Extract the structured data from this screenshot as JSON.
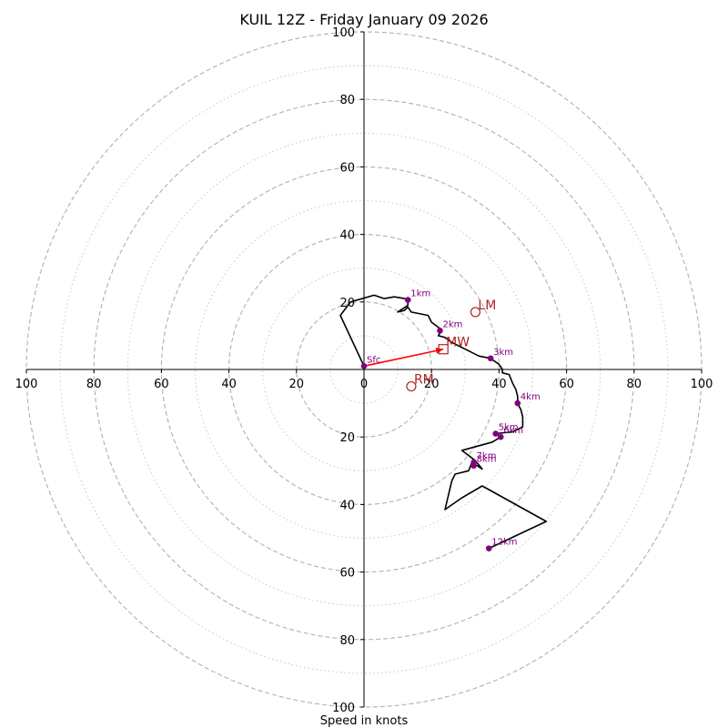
{
  "chart_data": {
    "type": "hodograph",
    "title": "KUIL 12Z - Friday January 09 2026",
    "xlabel": "Speed in knots",
    "units": "knots",
    "range": [
      -100,
      100
    ],
    "major_rings": [
      20,
      40,
      60,
      80,
      100
    ],
    "minor_rings": [
      10,
      30,
      50,
      70,
      90
    ],
    "x_tick_labels": [
      "100",
      "80",
      "60",
      "40",
      "20",
      "0",
      "20",
      "40",
      "60",
      "80",
      "100"
    ],
    "x_tick_values": [
      -100,
      -80,
      -60,
      -40,
      -20,
      0,
      20,
      40,
      60,
      80,
      100
    ],
    "y_tick_labels": [
      "100",
      "80",
      "60",
      "40",
      "20",
      "20",
      "40",
      "60",
      "80",
      "100"
    ],
    "y_tick_values": [
      100,
      80,
      60,
      40,
      20,
      -20,
      -40,
      -60,
      -80,
      -100
    ],
    "trace": [
      [
        0,
        1
      ],
      [
        -7,
        16
      ],
      [
        -4,
        20
      ],
      [
        3,
        22
      ],
      [
        6,
        21
      ],
      [
        9,
        21.5
      ],
      [
        12,
        21
      ],
      [
        13,
        20.6
      ],
      [
        13,
        19
      ],
      [
        10,
        17
      ],
      [
        12,
        17.5
      ],
      [
        13,
        18.5
      ],
      [
        14,
        17
      ],
      [
        19,
        16
      ],
      [
        20,
        14
      ],
      [
        22,
        12.5
      ],
      [
        23,
        11.5
      ],
      [
        22,
        10
      ],
      [
        24,
        9.5
      ],
      [
        26,
        8
      ],
      [
        30,
        6
      ],
      [
        34,
        4
      ],
      [
        37.5,
        3.3
      ],
      [
        40,
        1.5
      ],
      [
        41,
        0
      ],
      [
        41,
        -1
      ],
      [
        43,
        -1.5
      ],
      [
        44,
        -4
      ],
      [
        45,
        -6
      ],
      [
        45.5,
        -8
      ],
      [
        45.5,
        -10
      ],
      [
        46.5,
        -12
      ],
      [
        47,
        -14
      ],
      [
        47,
        -17
      ],
      [
        44,
        -18.5
      ],
      [
        39,
        -19
      ],
      [
        40.5,
        -20
      ],
      [
        38,
        -21.5
      ],
      [
        29,
        -24
      ],
      [
        33,
        -27
      ],
      [
        35,
        -29.5
      ],
      [
        32,
        -27.5
      ],
      [
        31,
        -30
      ],
      [
        27,
        -31
      ],
      [
        26,
        -33
      ],
      [
        24,
        -41.5
      ],
      [
        29,
        -38
      ],
      [
        35,
        -34.5
      ],
      [
        54,
        -45
      ],
      [
        37,
        -53
      ]
    ],
    "height_markers": [
      {
        "label": "Sfc",
        "u": 0,
        "v": 1
      },
      {
        "label": "1km",
        "u": 13,
        "v": 20.6
      },
      {
        "label": "2km",
        "u": 22.5,
        "v": 11.5
      },
      {
        "label": "3km",
        "u": 37.5,
        "v": 3.3
      },
      {
        "label": "4km",
        "u": 45.5,
        "v": -10
      },
      {
        "label": "5km",
        "u": 39,
        "v": -19
      },
      {
        "label": "6km",
        "u": 40.5,
        "v": -20
      },
      {
        "label": "7km",
        "u": 32.5,
        "v": -27.5
      },
      {
        "label": "8km",
        "u": 32.5,
        "v": -28.5
      },
      {
        "label": "12km",
        "u": 37,
        "v": -53
      }
    ],
    "motions": [
      {
        "label": "LM",
        "u": 33,
        "v": 17,
        "symbol": "circle"
      },
      {
        "label": "MW",
        "u": 23.5,
        "v": 6,
        "symbol": "square"
      },
      {
        "label": "RM",
        "u": 14,
        "v": -5,
        "symbol": "circle"
      }
    ],
    "shear_vector": {
      "from": [
        0,
        1
      ],
      "to": [
        23.5,
        6
      ]
    },
    "colors": {
      "trace": "#000000",
      "markers": "#800080",
      "motions": "#b22222",
      "shear_vector": "#ff0000",
      "major_ring": "#b0b0b0",
      "minor_ring": "#c8c8c8"
    }
  }
}
